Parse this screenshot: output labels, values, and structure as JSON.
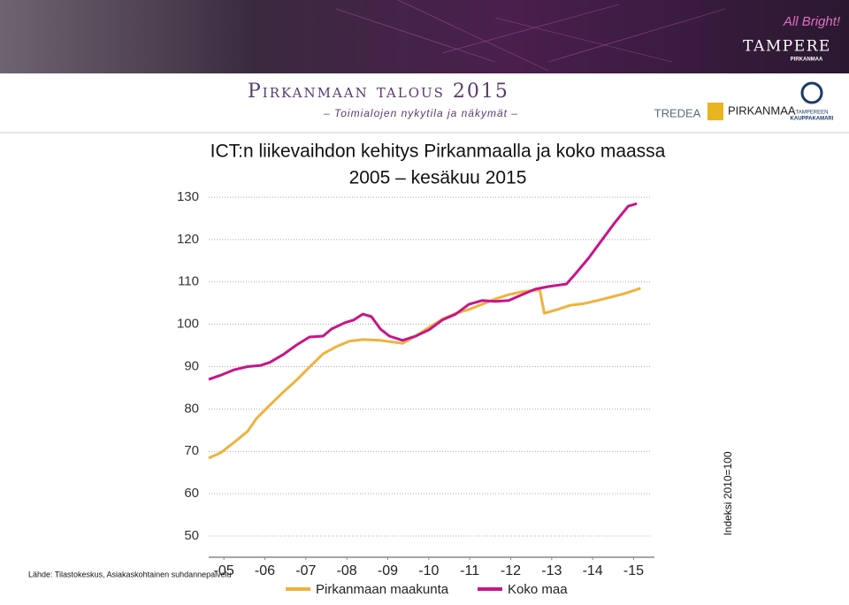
{
  "header": {
    "title": "Pirkanmaan talous 2015",
    "subtitle": "– Toimialojen nykytila ja näkymät –",
    "logos": [
      "TREDEA",
      "PIRKANMAA",
      "TAMPEREEN",
      "KAUPPAKAMARI",
      "TAMPERE",
      "PIRKANMAA",
      "All Bright!"
    ]
  },
  "chart_data": {
    "type": "line",
    "title": "ICT:n liikevaihdon kehitys Pirkanmaalla ja koko maassa",
    "subtitle": "2005 – kesäkuu 2015",
    "y_label": "Indeksi 2010=100",
    "source": "Lähde: Tilastokeskus, Asiakaskohtainen suhdannepalvelu",
    "xlim": [
      2005,
      2015.9
    ],
    "xticks": [
      {
        "value": 2005.5,
        "label": "-05"
      },
      {
        "value": 2006.5,
        "label": "-06"
      },
      {
        "value": 2007.5,
        "label": "-07"
      },
      {
        "value": 2008.5,
        "label": "-08"
      },
      {
        "value": 2009.5,
        "label": "-09"
      },
      {
        "value": 2010.5,
        "label": "-10"
      },
      {
        "value": 2011.5,
        "label": "-11"
      },
      {
        "value": 2012.5,
        "label": "-12"
      },
      {
        "value": 2013.5,
        "label": "-13"
      },
      {
        "value": 2014.5,
        "label": "-14"
      },
      {
        "value": 2015.5,
        "label": "-15"
      }
    ],
    "ylim": [
      50,
      130
    ],
    "yticks": [
      50,
      60,
      70,
      80,
      90,
      100,
      110,
      120,
      130
    ],
    "grid": true,
    "series": [
      {
        "name": "Pirkanmaan maakunta",
        "color": "#f0b23c",
        "x": [
          2005.13,
          2005.43,
          2005.76,
          2006.08,
          2006.3,
          2006.62,
          2006.94,
          2007.27,
          2007.59,
          2007.92,
          2008.24,
          2008.56,
          2008.89,
          2009.32,
          2009.86,
          2010.18,
          2010.51,
          2010.83,
          2011.16,
          2011.48,
          2011.8,
          2012.13,
          2012.45,
          2012.78,
          2013.21,
          2013.32,
          2013.64,
          2013.96,
          2014.29,
          2014.61,
          2014.94,
          2015.26,
          2015.67
        ],
        "values": [
          68.4,
          69.7,
          72.2,
          74.7,
          77.8,
          80.9,
          83.9,
          86.8,
          89.9,
          93.0,
          94.7,
          96.0,
          96.4,
          96.2,
          95.5,
          97.2,
          99.3,
          101.2,
          102.6,
          103.5,
          104.7,
          106.0,
          107.0,
          107.7,
          108.1,
          102.6,
          103.5,
          104.5,
          104.9,
          105.6,
          106.4,
          107.2,
          108.5
        ]
      },
      {
        "name": "Koko maa",
        "color": "#c7158a",
        "x": [
          2005.13,
          2005.43,
          2005.76,
          2006.08,
          2006.4,
          2006.62,
          2006.94,
          2007.27,
          2007.59,
          2007.92,
          2008.13,
          2008.46,
          2008.67,
          2008.89,
          2009.1,
          2009.32,
          2009.54,
          2009.86,
          2010.18,
          2010.51,
          2010.83,
          2011.16,
          2011.48,
          2011.8,
          2012.13,
          2012.45,
          2012.78,
          2013.1,
          2013.42,
          2013.86,
          2014.07,
          2014.4,
          2014.72,
          2015.04,
          2015.37,
          2015.58
        ],
        "values": [
          87.0,
          88.0,
          89.3,
          90.0,
          90.3,
          91.0,
          92.8,
          95.1,
          97.0,
          97.2,
          98.9,
          100.4,
          101.0,
          102.4,
          101.8,
          98.9,
          97.2,
          96.2,
          97.2,
          98.7,
          101.0,
          102.4,
          104.7,
          105.6,
          105.4,
          105.6,
          107.0,
          108.3,
          108.9,
          109.5,
          111.8,
          115.6,
          119.8,
          124.0,
          127.9,
          128.5
        ]
      }
    ]
  }
}
